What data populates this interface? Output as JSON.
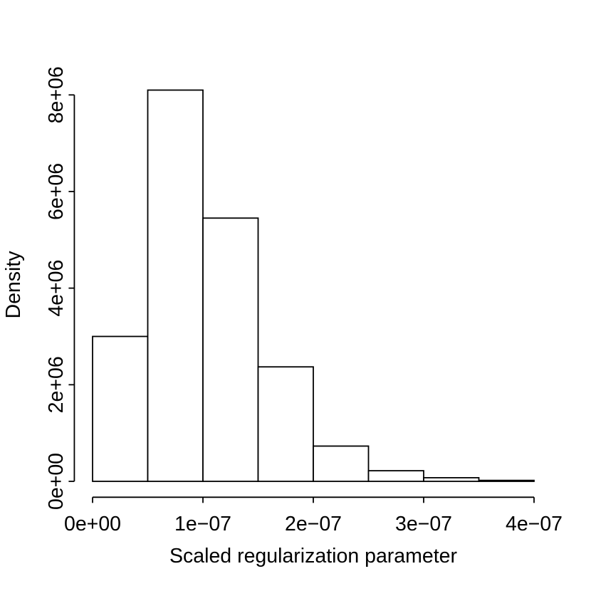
{
  "chart_data": {
    "type": "bar",
    "subtype": "histogram",
    "title": "",
    "xlabel": "Scaled regularization parameter",
    "ylabel": "Density",
    "bin_edges": [
      0,
      5e-08,
      1e-07,
      1.5e-07,
      2e-07,
      2.5e-07,
      3e-07,
      3.5e-07,
      4e-07
    ],
    "densities": [
      3000000,
      8100000,
      5450000,
      2370000,
      730000,
      220000,
      75000,
      20000
    ],
    "x_ticks": {
      "values": [
        0,
        1e-07,
        2e-07,
        3e-07,
        4e-07
      ],
      "labels": [
        "0e+00",
        "1e−07",
        "2e−07",
        "3e−07",
        "4e−07"
      ]
    },
    "y_ticks": {
      "values": [
        0,
        2000000,
        4000000,
        6000000,
        8000000
      ],
      "labels": [
        "0e+00",
        "2e+06",
        "4e+06",
        "6e+06",
        "8e+06"
      ]
    },
    "xlim": [
      0,
      4e-07
    ],
    "ylim": [
      0,
      8100000
    ],
    "grid": false,
    "legend_position": "none",
    "colors": {
      "background": "#ffffff",
      "bar_fill": "#ffffff",
      "bar_stroke": "#000000",
      "axis": "#000000",
      "text": "#000000"
    }
  }
}
